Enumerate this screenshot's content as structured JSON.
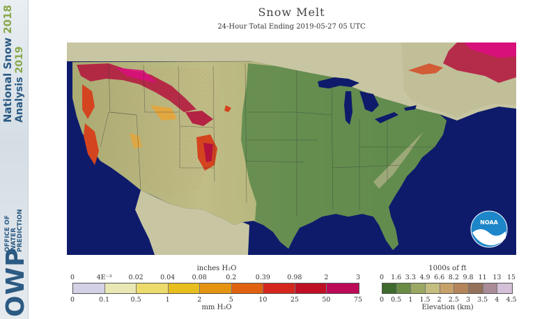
{
  "sidebar": {
    "title_prefix": "National Snow",
    "title_year": "2018",
    "subtitle_prefix": "Analysis",
    "subtitle_year": "2019",
    "logo": "OWP",
    "logo_text": [
      "OFFICE OF",
      "WATER",
      "PREDICTION"
    ]
  },
  "header": {
    "title": "Snow Melt",
    "subtitle": "24-Hour Total Ending 2019-05-27 05 UTC"
  },
  "map": {
    "colors": {
      "ocean": "#0e1b6b",
      "land_low": "#5c8a4a",
      "land_mid": "#8ea466",
      "land_high": "#c7c58f",
      "canada_mexico": "#c7c7a0",
      "lakes": "#0e1b6b",
      "melt_low": "#e7a53a",
      "melt_mid": "#d4441e",
      "melt_high": "#b3123c",
      "melt_max": "#d8107a"
    },
    "logo_label": "NOAA"
  },
  "melt_legend": {
    "unit_top": "inches H₂O",
    "unit_bottom": "mm H₂O",
    "top_ticks": [
      "0",
      "4E⁻³",
      "0.02",
      "0.04",
      "0.08",
      "0.2",
      "0.39",
      "0.98",
      "2",
      "3"
    ],
    "bottom_ticks": [
      "0",
      "0.1",
      "0.5",
      "1",
      "2",
      "5",
      "10",
      "25",
      "50",
      "75"
    ],
    "colors": [
      "#d3d1e6",
      "#e9e8b4",
      "#ecdb6a",
      "#e8bd1e",
      "#e59412",
      "#e0620e",
      "#d4261c",
      "#be0f24",
      "#bc0a58"
    ]
  },
  "elev_legend": {
    "unit_top": "1000s of ft",
    "unit_bottom": "Elevation (km)",
    "top_ticks": [
      "0",
      "1.6",
      "3.3",
      "4.9",
      "6.6",
      "8.2",
      "9.8",
      "11",
      "13",
      "15"
    ],
    "bottom_ticks": [
      "0",
      "0.5",
      "1",
      "1.5",
      "2",
      "2.5",
      "3",
      "3.5",
      "4",
      "4.5"
    ],
    "colors": [
      "#3f6a2e",
      "#6a8c44",
      "#9aa864",
      "#c3bd80",
      "#c7a16a",
      "#b4855a",
      "#94725a",
      "#aa8c98",
      "#d4c0d8"
    ]
  }
}
